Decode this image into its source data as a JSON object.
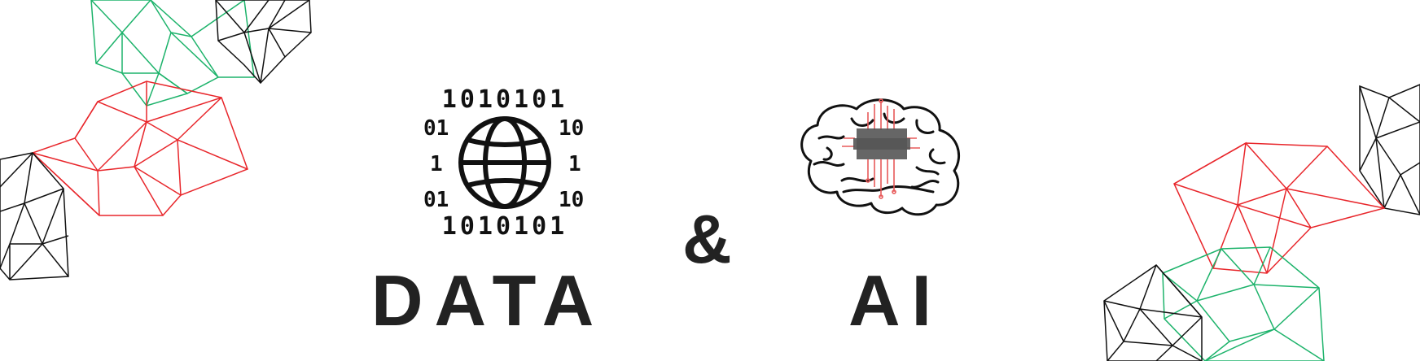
{
  "banner": {
    "left_word": "DATA",
    "connector": "&",
    "right_word": "AI"
  },
  "data_icon": {
    "name": "globe-binary-icon",
    "top_row": "1010101",
    "bottom_row": "1010101",
    "left_marks": [
      "01",
      "1",
      "01"
    ],
    "right_marks": [
      "10",
      "1",
      "10"
    ]
  },
  "ai_icon": {
    "name": "brain-circuit-icon"
  },
  "colors": {
    "text": "#222222",
    "green": "#1db36b",
    "red": "#e8262b",
    "black": "#111111",
    "circuit": "#e85a5a"
  }
}
